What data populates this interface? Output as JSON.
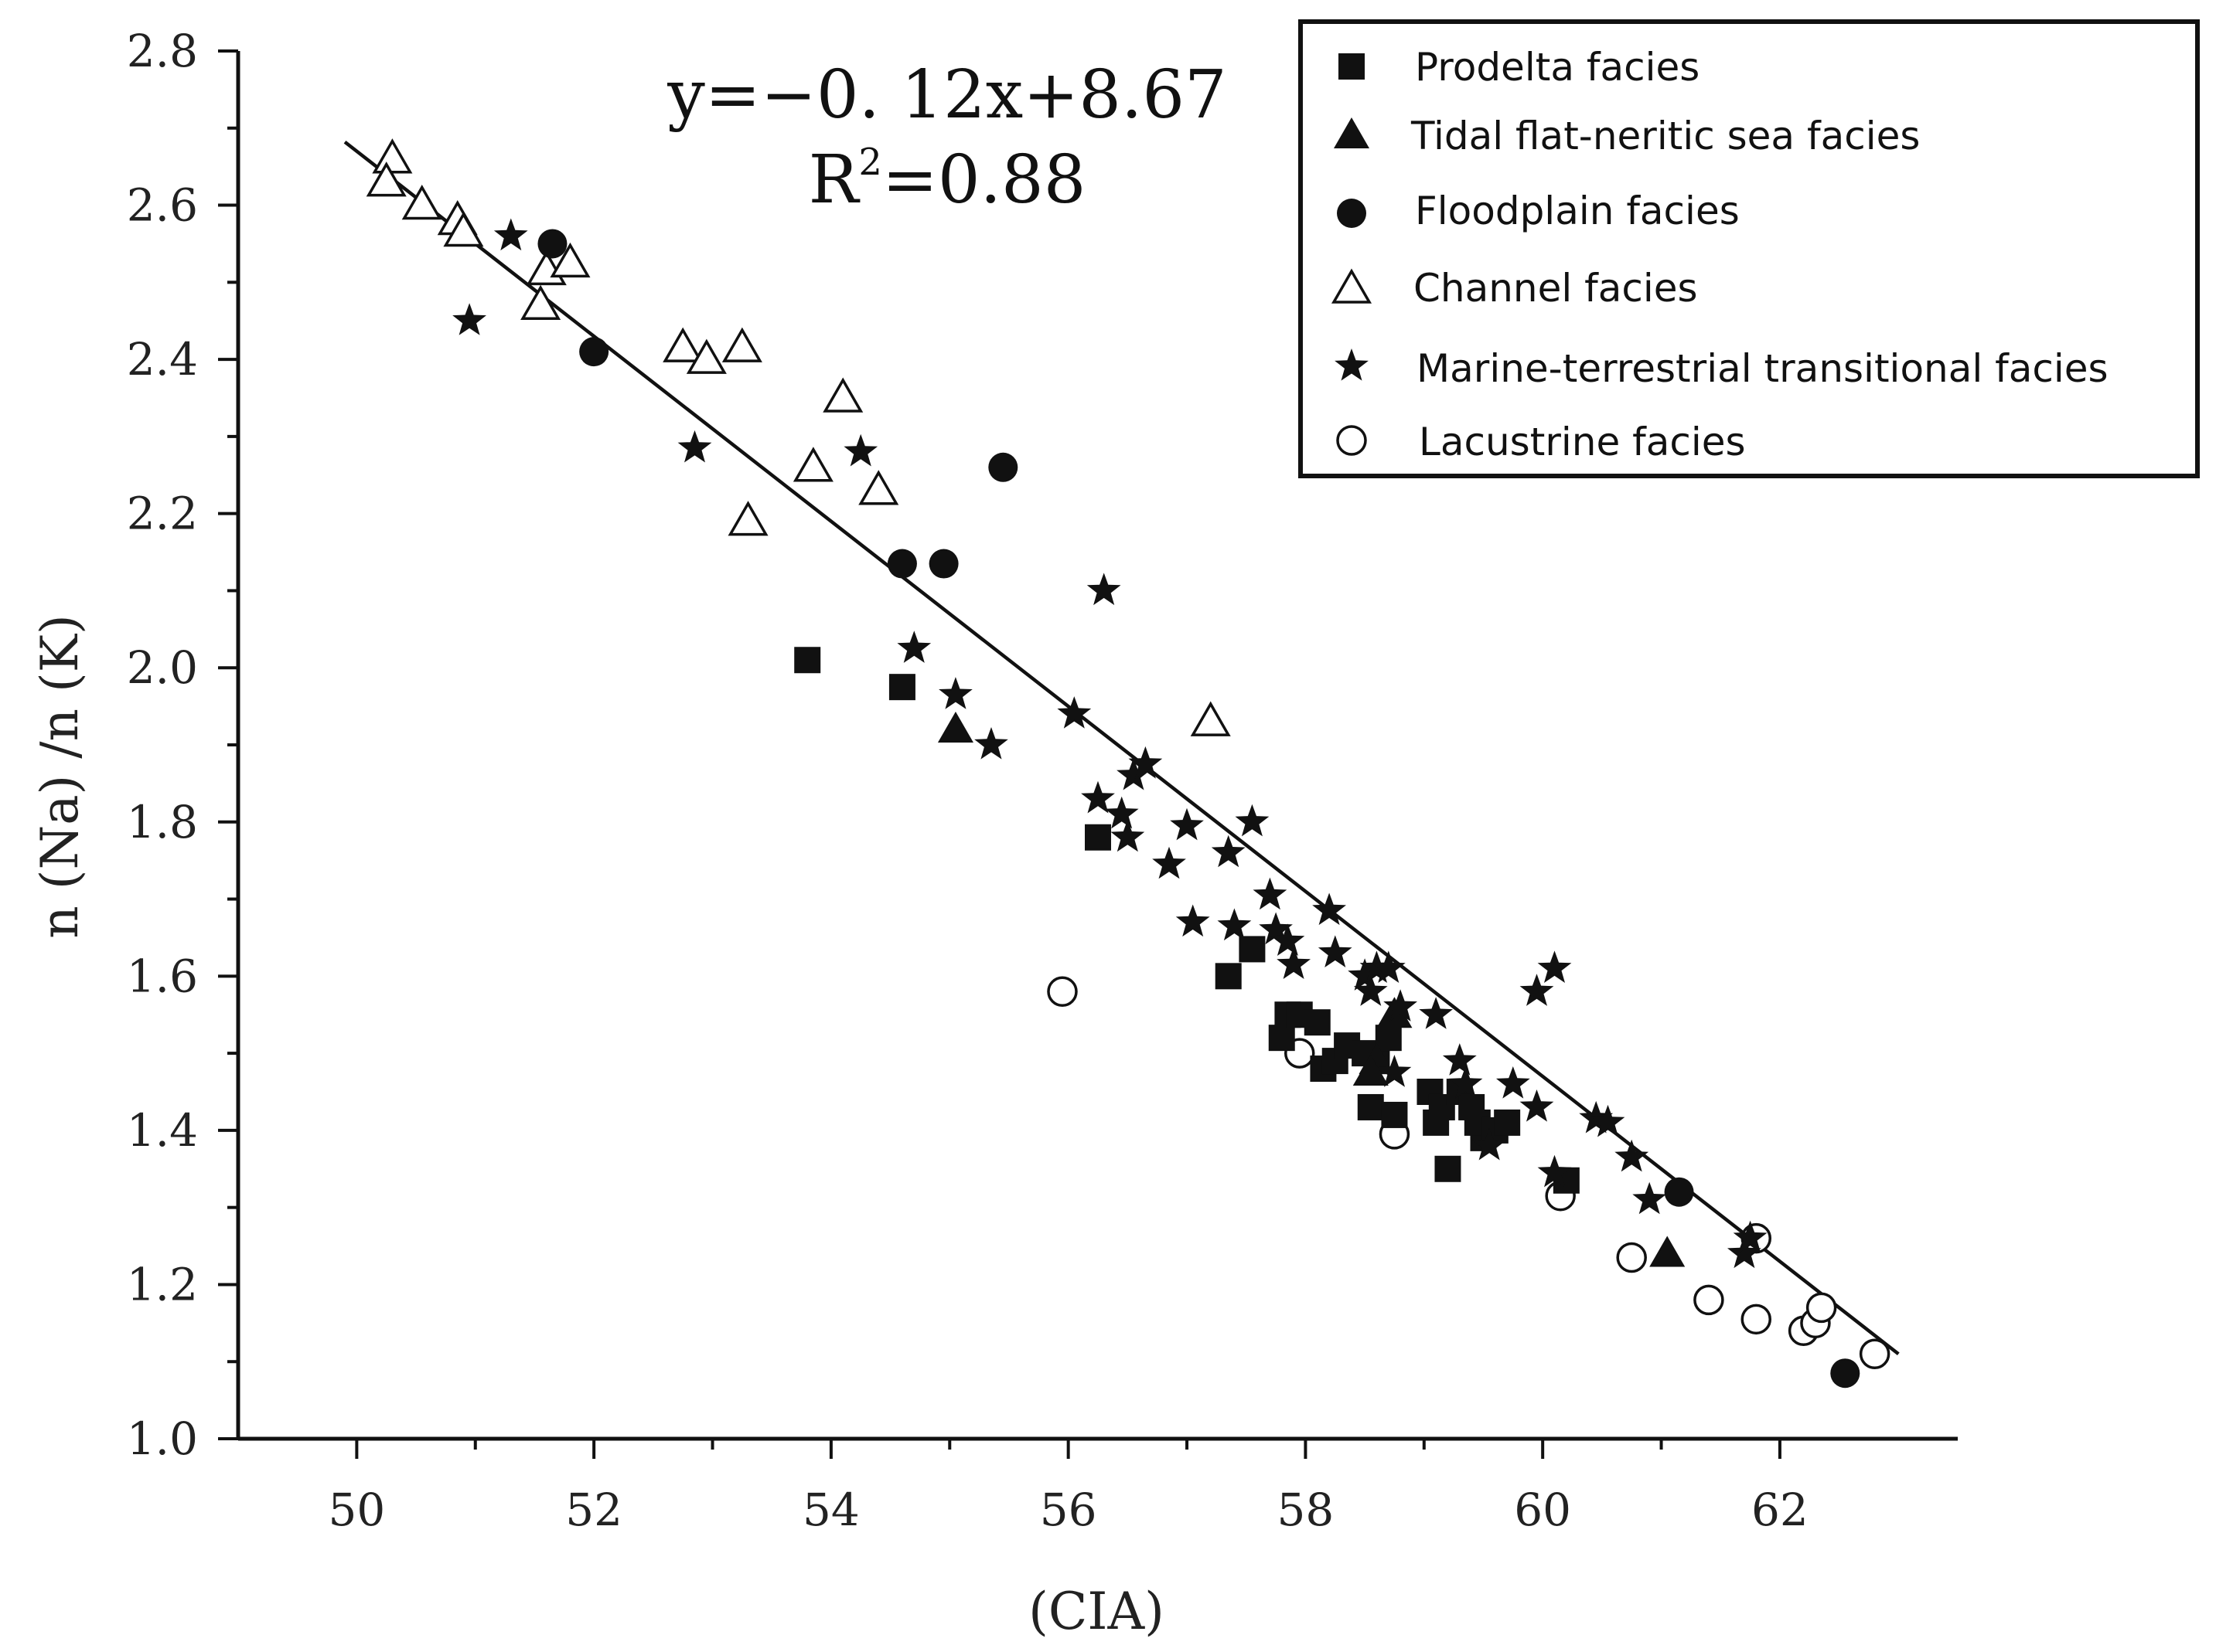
{
  "chart_data": {
    "type": "scatter",
    "title": "",
    "xlabel": "(CIA)",
    "ylabel": "n (Na) /n (K)",
    "xlim": [
      49,
      63.5
    ],
    "ylim": [
      1.0,
      2.8
    ],
    "xticks": [
      50,
      52,
      54,
      56,
      58,
      60,
      62
    ],
    "yticks": [
      1.0,
      1.2,
      1.4,
      1.6,
      1.8,
      2.0,
      2.2,
      2.4,
      2.6,
      2.8
    ],
    "xtick_labels": [
      "50",
      "52",
      "54",
      "56",
      "58",
      "60",
      "62"
    ],
    "ytick_labels": [
      "1.0",
      "1.2",
      "1.4",
      "1.6",
      "1.8",
      "2.0",
      "2.2",
      "2.4",
      "2.6",
      "2.8"
    ],
    "equation": {
      "line1": "y=−0. 12x+8.67",
      "r2_prefix": "R",
      "r2_sup": "2",
      "r2_suffix": "=0.88"
    },
    "fit_line": {
      "slope": -0.12,
      "intercept": 8.67,
      "x_range": [
        49.9,
        63.0
      ]
    },
    "legend_position": "top-right",
    "series": [
      {
        "name": "Prodelta  facies",
        "marker": "square",
        "x": [
          53.8,
          54.6,
          56.25,
          57.35,
          57.55,
          57.85,
          57.8,
          57.95,
          58.1,
          58.15,
          58.25,
          58.35,
          58.5,
          58.6,
          58.7,
          58.55,
          58.75,
          59.05,
          59.1,
          59.15,
          59.2,
          59.3,
          59.4,
          59.5,
          59.45,
          59.6,
          59.7,
          60.2
        ],
        "y": [
          2.01,
          1.975,
          1.78,
          1.6,
          1.635,
          1.55,
          1.52,
          1.55,
          1.54,
          1.48,
          1.49,
          1.51,
          1.5,
          1.49,
          1.52,
          1.43,
          1.42,
          1.45,
          1.41,
          1.43,
          1.35,
          1.45,
          1.43,
          1.39,
          1.41,
          1.4,
          1.41,
          1.335
        ]
      },
      {
        "name": "Tidal flat-neritic sea  facies",
        "marker": "triangle",
        "x": [
          55.05,
          58.6,
          58.75,
          58.55,
          61.05
        ],
        "y": [
          1.92,
          1.49,
          1.55,
          1.475,
          1.24
        ]
      },
      {
        "name": "Floodplain facies",
        "marker": "circle",
        "x": [
          51.65,
          52.0,
          54.6,
          54.95,
          55.45,
          61.15,
          62.55
        ],
        "y": [
          2.55,
          2.41,
          2.135,
          2.135,
          2.26,
          1.32,
          1.085
        ]
      },
      {
        "name": "Channel facies",
        "marker": "triangle-open",
        "x": [
          50.3,
          50.25,
          50.55,
          50.85,
          50.9,
          51.55,
          51.6,
          51.8,
          52.75,
          52.95,
          53.25,
          53.3,
          53.85,
          54.1,
          54.4,
          57.2
        ],
        "y": [
          2.66,
          2.63,
          2.6,
          2.58,
          2.565,
          2.47,
          2.515,
          2.525,
          2.415,
          2.4,
          2.415,
          2.19,
          2.26,
          2.35,
          2.23,
          1.93
        ]
      },
      {
        "name": "Marine-terrestrial transitional facies",
        "marker": "star",
        "x": [
          50.95,
          51.3,
          52.85,
          54.25,
          54.7,
          55.05,
          55.35,
          56.05,
          56.25,
          56.3,
          56.45,
          56.5,
          56.55,
          56.65,
          56.85,
          57.0,
          57.05,
          57.35,
          57.4,
          57.55,
          57.7,
          57.75,
          57.85,
          57.9,
          58.2,
          58.25,
          58.5,
          58.55,
          58.6,
          58.7,
          58.8,
          58.75,
          59.1,
          59.3,
          59.35,
          59.55,
          59.75,
          59.95,
          59.95,
          60.1,
          60.1,
          60.45,
          60.55,
          60.75,
          60.9,
          61.7,
          61.75
        ],
        "y": [
          2.45,
          2.56,
          2.285,
          2.28,
          2.025,
          1.965,
          1.9,
          1.94,
          1.83,
          2.1,
          1.81,
          1.78,
          1.86,
          1.875,
          1.745,
          1.795,
          1.67,
          1.76,
          1.665,
          1.8,
          1.705,
          1.66,
          1.645,
          1.615,
          1.685,
          1.63,
          1.6,
          1.58,
          1.61,
          1.61,
          1.56,
          1.475,
          1.55,
          1.49,
          1.46,
          1.38,
          1.46,
          1.58,
          1.43,
          1.345,
          1.61,
          1.415,
          1.41,
          1.365,
          1.31,
          1.24,
          1.26
        ]
      },
      {
        "name": "Lacustrine facies",
        "marker": "circle-open",
        "x": [
          55.95,
          57.95,
          58.75,
          60.15,
          60.75,
          61.4,
          61.8,
          61.8,
          62.2,
          62.3,
          62.35,
          62.8
        ],
        "y": [
          1.58,
          1.5,
          1.395,
          1.315,
          1.235,
          1.18,
          1.155,
          1.26,
          1.14,
          1.15,
          1.17,
          1.11
        ]
      }
    ]
  }
}
